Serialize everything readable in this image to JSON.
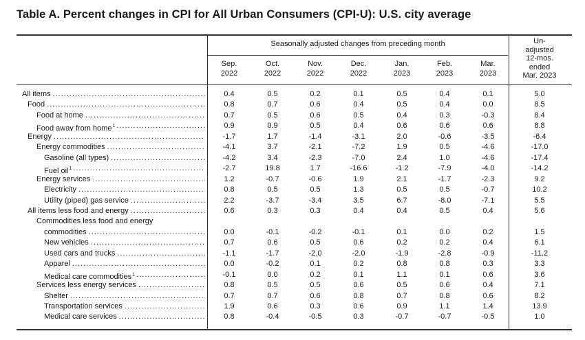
{
  "title": "Table A. Percent changes in CPI for All Urban Consumers (CPI-U): U.S. city average",
  "group_header": "Seasonally adjusted changes from preceding month",
  "columns": [
    "Sep.\n2022",
    "Oct.\n2022",
    "Nov.\n2022",
    "Dec.\n2022",
    "Jan.\n2023",
    "Feb.\n2023",
    "Mar.\n2023"
  ],
  "unadjusted_header": "Un-\nadjusted\n12-mos.\nended\nMar. 2023",
  "rows": [
    {
      "label": "All items",
      "indent": 0,
      "values": [
        "0.4",
        "0.5",
        "0.2",
        "0.1",
        "0.5",
        "0.4",
        "0.1"
      ],
      "unadjusted": "5.0"
    },
    {
      "label": "Food",
      "indent": 1,
      "values": [
        "0.8",
        "0.7",
        "0.6",
        "0.4",
        "0.5",
        "0.4",
        "0.0"
      ],
      "unadjusted": "8.5"
    },
    {
      "label": "Food at home",
      "indent": 2,
      "values": [
        "0.7",
        "0.5",
        "0.6",
        "0.5",
        "0.4",
        "0.3",
        "-0.3"
      ],
      "unadjusted": "8.4"
    },
    {
      "label": "Food away from home",
      "sup": "1",
      "indent": 2,
      "values": [
        "0.9",
        "0.9",
        "0.5",
        "0.4",
        "0.6",
        "0.6",
        "0.6"
      ],
      "unadjusted": "8.8"
    },
    {
      "label": "Energy",
      "indent": 1,
      "values": [
        "-1.7",
        "1.7",
        "-1.4",
        "-3.1",
        "2.0",
        "-0.6",
        "-3.5"
      ],
      "unadjusted": "-6.4"
    },
    {
      "label": "Energy commodities",
      "indent": 2,
      "values": [
        "-4.1",
        "3.7",
        "-2.1",
        "-7.2",
        "1.9",
        "0.5",
        "-4.6"
      ],
      "unadjusted": "-17.0"
    },
    {
      "label": "Gasoline (all types)",
      "indent": 3,
      "values": [
        "-4.2",
        "3.4",
        "-2.3",
        "-7.0",
        "2.4",
        "1.0",
        "-4.6"
      ],
      "unadjusted": "-17.4"
    },
    {
      "label": "Fuel oil",
      "sup": "1",
      "indent": 3,
      "values": [
        "-2.7",
        "19.8",
        "1.7",
        "-16.6",
        "-1.2",
        "-7.9",
        "-4.0"
      ],
      "unadjusted": "-14.2"
    },
    {
      "label": "Energy services",
      "indent": 2,
      "values": [
        "1.2",
        "-0.7",
        "-0.6",
        "1.9",
        "2.1",
        "-1.7",
        "-2.3"
      ],
      "unadjusted": "9.2"
    },
    {
      "label": "Electricity",
      "indent": 3,
      "values": [
        "0.8",
        "0.5",
        "0.5",
        "1.3",
        "0.5",
        "0.5",
        "-0.7"
      ],
      "unadjusted": "10.2"
    },
    {
      "label": "Utility (piped) gas service",
      "indent": 3,
      "values": [
        "2.2",
        "-3.7",
        "-3.4",
        "3.5",
        "6.7",
        "-8.0",
        "-7.1"
      ],
      "unadjusted": "5.5"
    },
    {
      "label": "All items less food and energy",
      "indent": 1,
      "values": [
        "0.6",
        "0.3",
        "0.3",
        "0.4",
        "0.4",
        "0.5",
        "0.4"
      ],
      "unadjusted": "5.6"
    },
    {
      "label": "Commodities less food and energy",
      "indent": 2,
      "values": [
        "",
        "",
        "",
        "",
        "",
        "",
        ""
      ],
      "unadjusted": ""
    },
    {
      "label": "commodities",
      "indent": 3,
      "values": [
        "0.0",
        "-0.1",
        "-0.2",
        "-0.1",
        "0.1",
        "0.0",
        "0.2"
      ],
      "unadjusted": "1.5"
    },
    {
      "label": "New vehicles",
      "indent": 3,
      "values": [
        "0.7",
        "0.6",
        "0.5",
        "0.6",
        "0.2",
        "0.2",
        "0.4"
      ],
      "unadjusted": "6.1"
    },
    {
      "label": "Used cars and trucks",
      "indent": 3,
      "values": [
        "-1.1",
        "-1.7",
        "-2.0",
        "-2.0",
        "-1.9",
        "-2.8",
        "-0.9"
      ],
      "unadjusted": "-11.2"
    },
    {
      "label": "Apparel",
      "indent": 3,
      "values": [
        "0.0",
        "-0.2",
        "0.1",
        "0.2",
        "0.8",
        "0.8",
        "0.3"
      ],
      "unadjusted": "3.3"
    },
    {
      "label": "Medical care commodities",
      "sup": "1",
      "indent": 3,
      "values": [
        "-0.1",
        "0.0",
        "0.2",
        "0.1",
        "1.1",
        "0.1",
        "0.6"
      ],
      "unadjusted": "3.6"
    },
    {
      "label": "Services less energy services",
      "indent": 2,
      "values": [
        "0.8",
        "0.5",
        "0.5",
        "0.6",
        "0.5",
        "0.6",
        "0.4"
      ],
      "unadjusted": "7.1"
    },
    {
      "label": "Shelter",
      "indent": 3,
      "values": [
        "0.7",
        "0.7",
        "0.6",
        "0.8",
        "0.7",
        "0.8",
        "0.6"
      ],
      "unadjusted": "8.2"
    },
    {
      "label": "Transportation services",
      "indent": 3,
      "values": [
        "1.9",
        "0.6",
        "0.3",
        "0.6",
        "0.9",
        "1.1",
        "1.4"
      ],
      "unadjusted": "13.9"
    },
    {
      "label": "Medical care services",
      "indent": 3,
      "values": [
        "0.8",
        "-0.4",
        "-0.5",
        "0.3",
        "-0.7",
        "-0.7",
        "-0.5"
      ],
      "unadjusted": "1.0"
    }
  ]
}
